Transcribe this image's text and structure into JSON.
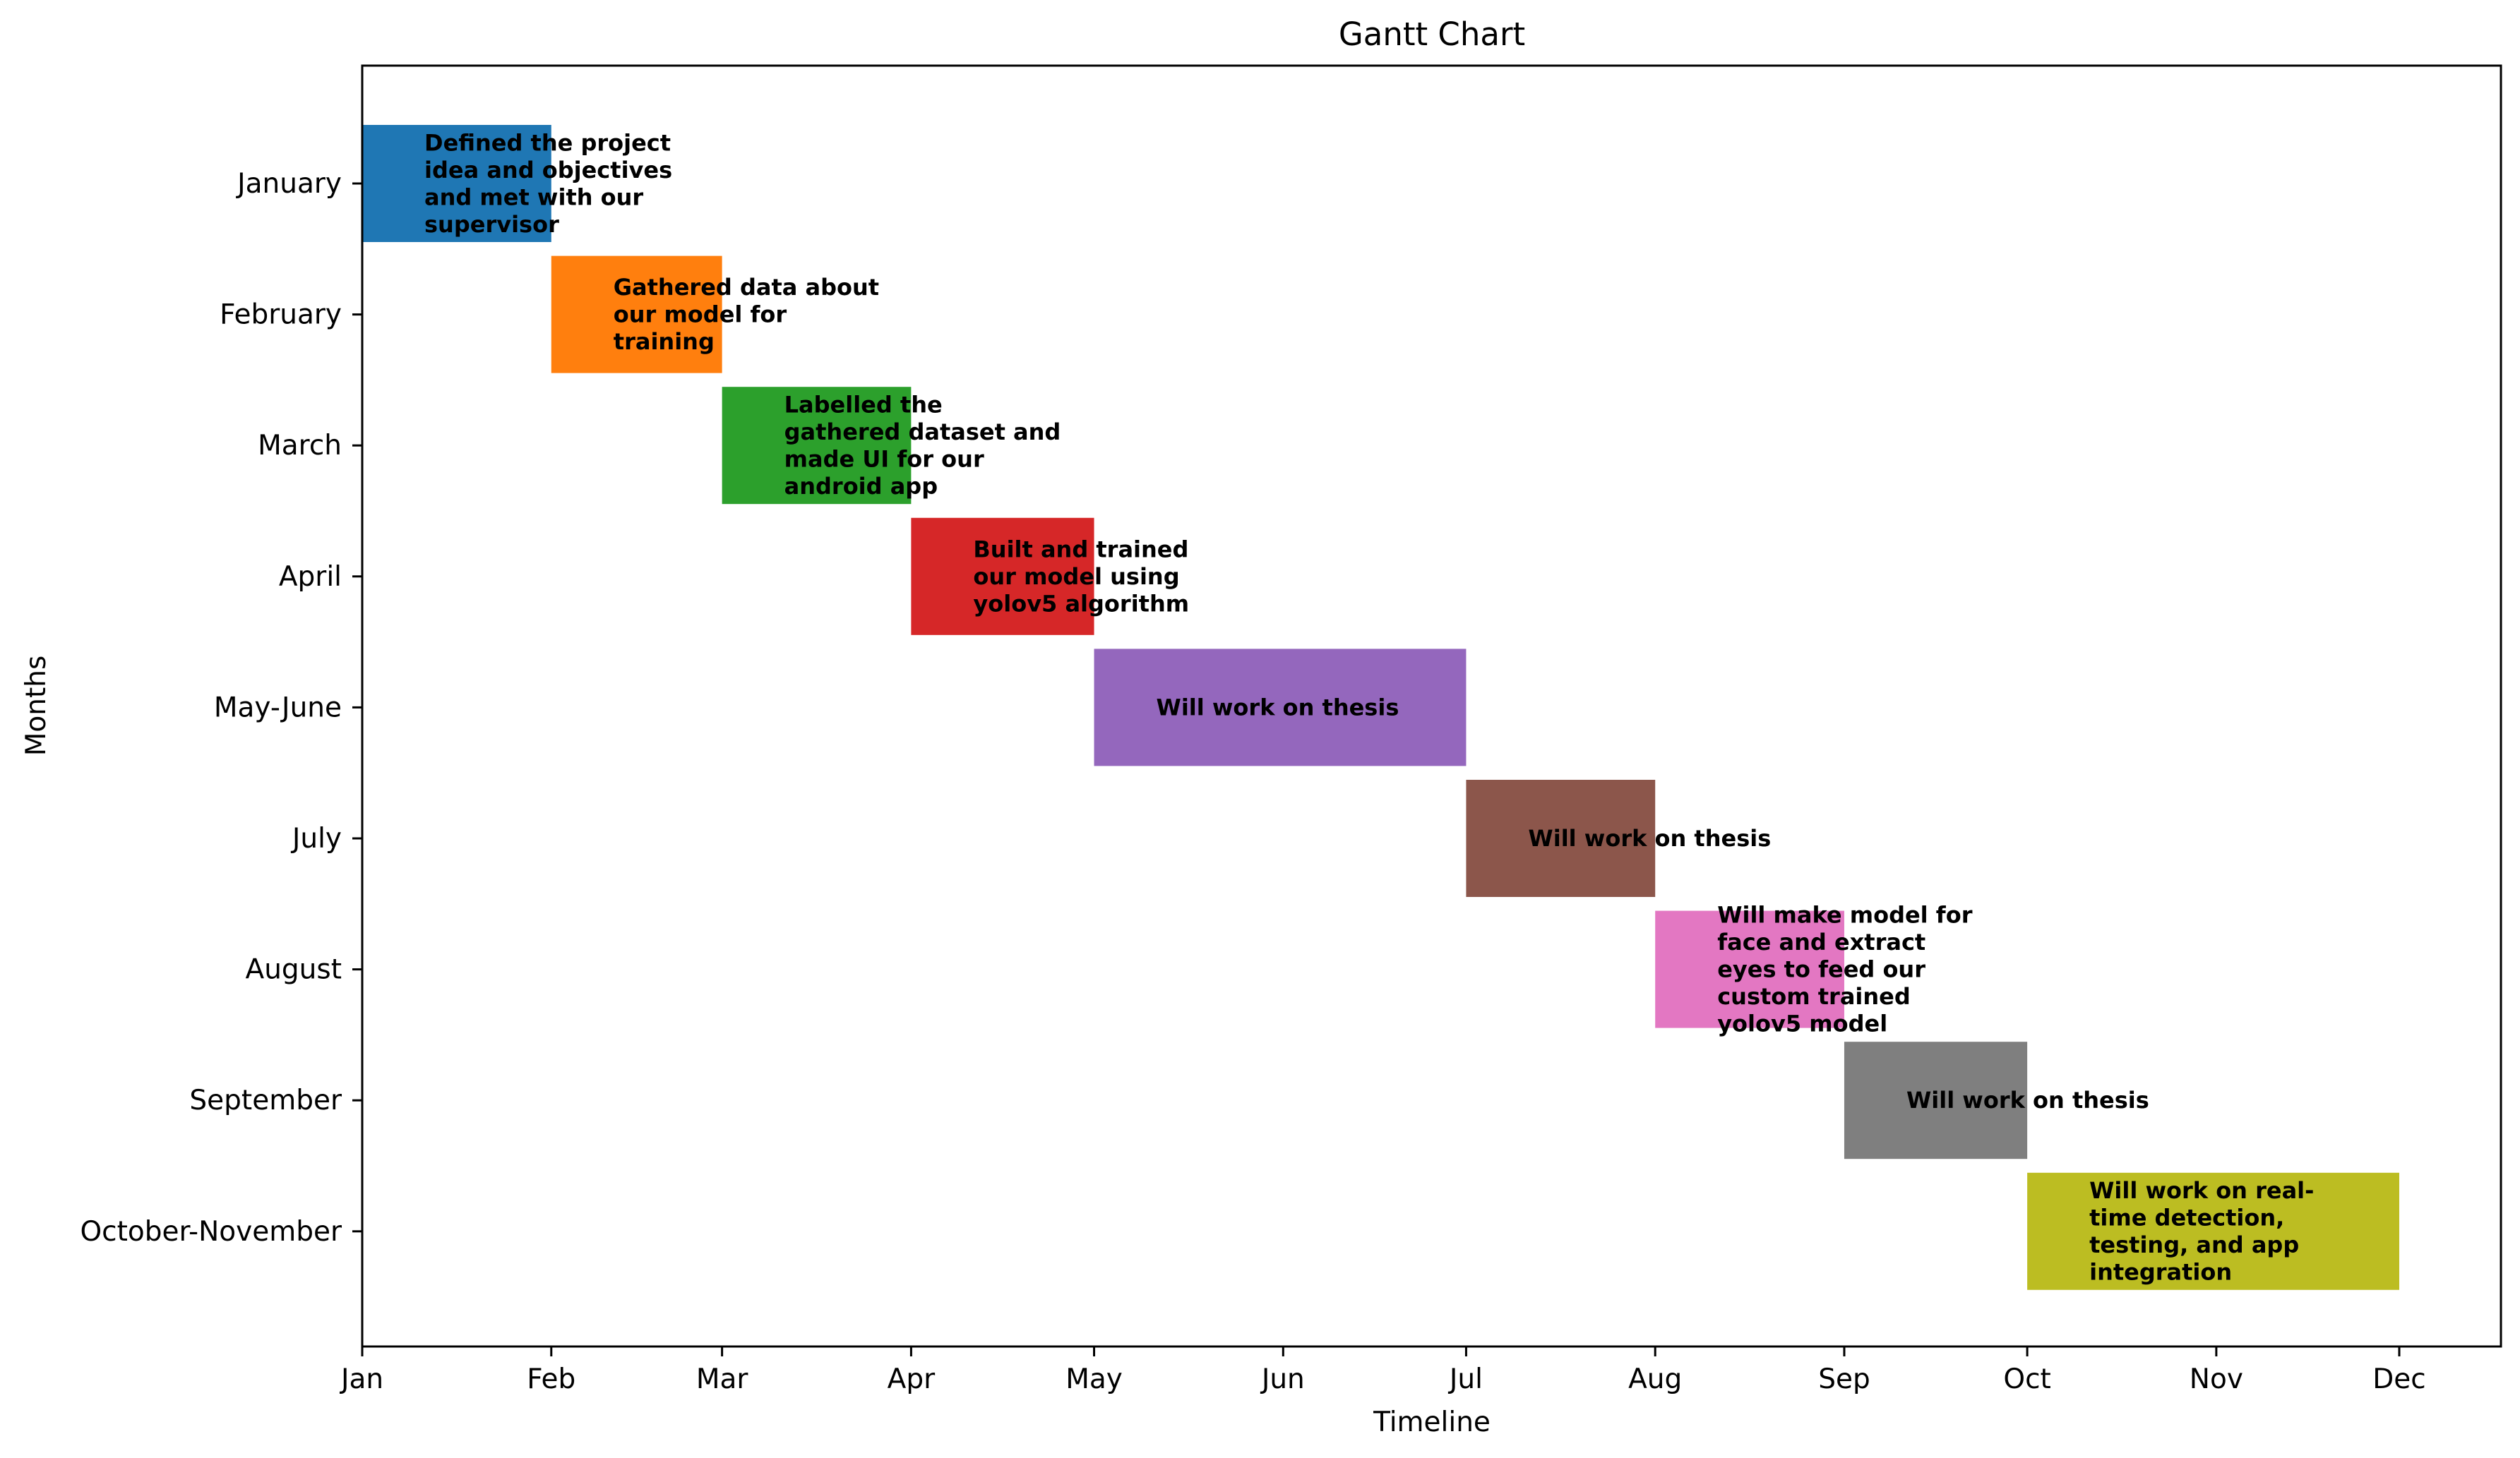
{
  "chart_data": {
    "type": "gantt",
    "title": "Gantt Chart",
    "xlabel": "Timeline",
    "ylabel": "Months",
    "x_tick_labels": [
      "Jan",
      "Feb",
      "Mar",
      "Apr",
      "May",
      "Jun",
      "Jul",
      "Aug",
      "Sep",
      "Oct",
      "Nov",
      "Dec"
    ],
    "x_tick_dates": [
      "2023-01-01",
      "2023-02-01",
      "2023-03-01",
      "2023-04-01",
      "2023-05-01",
      "2023-06-01",
      "2023-07-01",
      "2023-08-01",
      "2023-09-01",
      "2023-10-01",
      "2023-11-01",
      "2023-12-01"
    ],
    "xlim": [
      "2023-01-01",
      "2023-12-31"
    ],
    "grid": false,
    "tasks": [
      {
        "category": "January",
        "start": "2023-01-01",
        "end": "2023-02-01",
        "color": "#1f77b4",
        "lines": [
          "Defined the project",
          "idea and objectives",
          "and met with our",
          "supervisor"
        ]
      },
      {
        "category": "February",
        "start": "2023-02-01",
        "end": "2023-03-01",
        "color": "#ff7f0e",
        "lines": [
          "Gathered data about",
          "our model for",
          "training"
        ]
      },
      {
        "category": "March",
        "start": "2023-03-01",
        "end": "2023-04-01",
        "color": "#2ca02c",
        "lines": [
          "Labelled the",
          "gathered dataset and",
          "made UI for our",
          "android app"
        ]
      },
      {
        "category": "April",
        "start": "2023-04-01",
        "end": "2023-05-01",
        "color": "#d62728",
        "lines": [
          "Built and trained",
          "our model using",
          "yolov5 algorithm"
        ]
      },
      {
        "category": "May-June",
        "start": "2023-05-01",
        "end": "2023-07-01",
        "color": "#9467bd",
        "lines": [
          "Will work on thesis"
        ]
      },
      {
        "category": "July",
        "start": "2023-07-01",
        "end": "2023-08-01",
        "color": "#8c564b",
        "lines": [
          "Will work on thesis"
        ]
      },
      {
        "category": "August",
        "start": "2023-08-01",
        "end": "2023-09-01",
        "color": "#e377c2",
        "lines": [
          "Will make model for",
          "face and extract",
          "eyes to feed our",
          "custom trained",
          "yolov5 model"
        ]
      },
      {
        "category": "September",
        "start": "2023-09-01",
        "end": "2023-10-01",
        "color": "#7f7f7f",
        "lines": [
          "Will work on thesis"
        ]
      },
      {
        "category": "October-November",
        "start": "2023-10-01",
        "end": "2023-12-01",
        "color": "#bcbd22",
        "lines": [
          "Will work on real-",
          "time detection,",
          "testing, and app",
          "integration"
        ]
      }
    ]
  }
}
